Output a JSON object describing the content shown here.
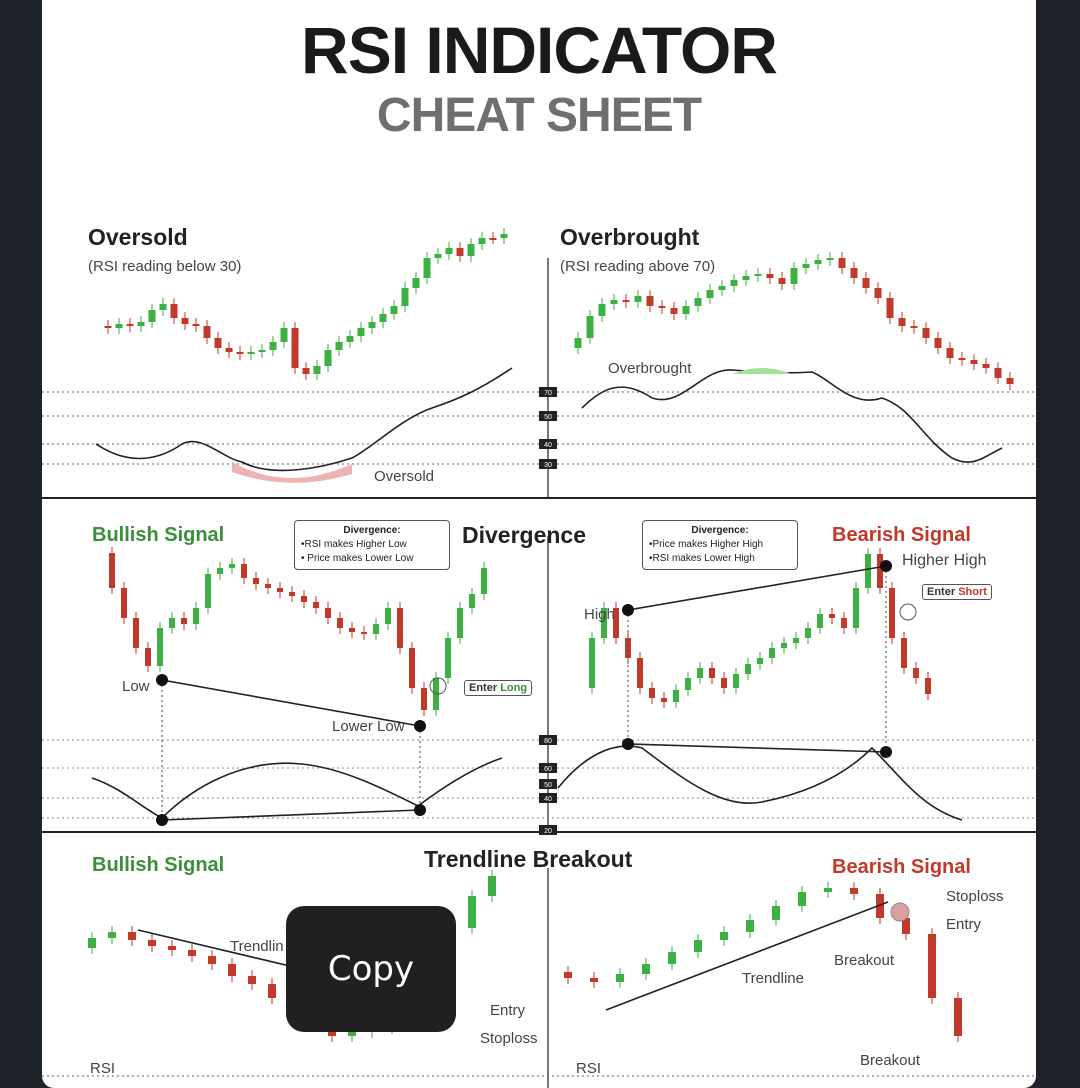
{
  "title": "RSI INDICATOR",
  "subtitle": "CHEAT SHEET",
  "panels": {
    "oversold": {
      "heading": "Oversold",
      "caption": "(RSI reading below 30)",
      "rsi_label": "Oversold"
    },
    "overbought": {
      "heading": "Overbrought",
      "caption": "(RSI reading above 70)",
      "rsi_label": "Overbrought"
    },
    "divergence": {
      "heading": "Divergence",
      "bullish": {
        "heading": "Bullish Signal",
        "note_title": "Divergence:",
        "note_lines": [
          "•RSI makes Higher Low",
          "• Price makes Lower Low"
        ],
        "low": "Low",
        "lower_low": "Lower Low",
        "enter_prefix": "Enter ",
        "enter_word": "Long"
      },
      "bearish": {
        "heading": "Bearish Signal",
        "note_title": "Divergence:",
        "note_lines": [
          "•Price makes Higher High",
          "•RSI makes Lower High"
        ],
        "high": "High",
        "higher_high": "Higher High",
        "enter_prefix": "Enter ",
        "enter_word": "Short"
      }
    },
    "trendline": {
      "heading": "Trendline Breakout",
      "bullish": {
        "heading": "Bullish Signal",
        "trendline": "Trendlin",
        "entry": "Entry",
        "stoploss": "Stoploss",
        "rsi": "RSI"
      },
      "bearish": {
        "heading": "Bearish Signal",
        "stoploss": "Stoploss",
        "entry": "Entry",
        "breakout": "Breakout",
        "trendline": "Trendline",
        "breakout2": "Breakout",
        "rsi": "RSI"
      }
    }
  },
  "rsi_ticks": [
    "70",
    "50",
    "40",
    "30"
  ],
  "rsi_ticks_div": [
    "80",
    "60",
    "50",
    "40",
    "20"
  ],
  "colors": {
    "bull": "#3cb043",
    "bear": "#c0392b",
    "oversold_fill": "#e8a0a0",
    "overbought_fill": "#a8e0a0"
  },
  "copy_button": {
    "label": "Copy"
  }
}
